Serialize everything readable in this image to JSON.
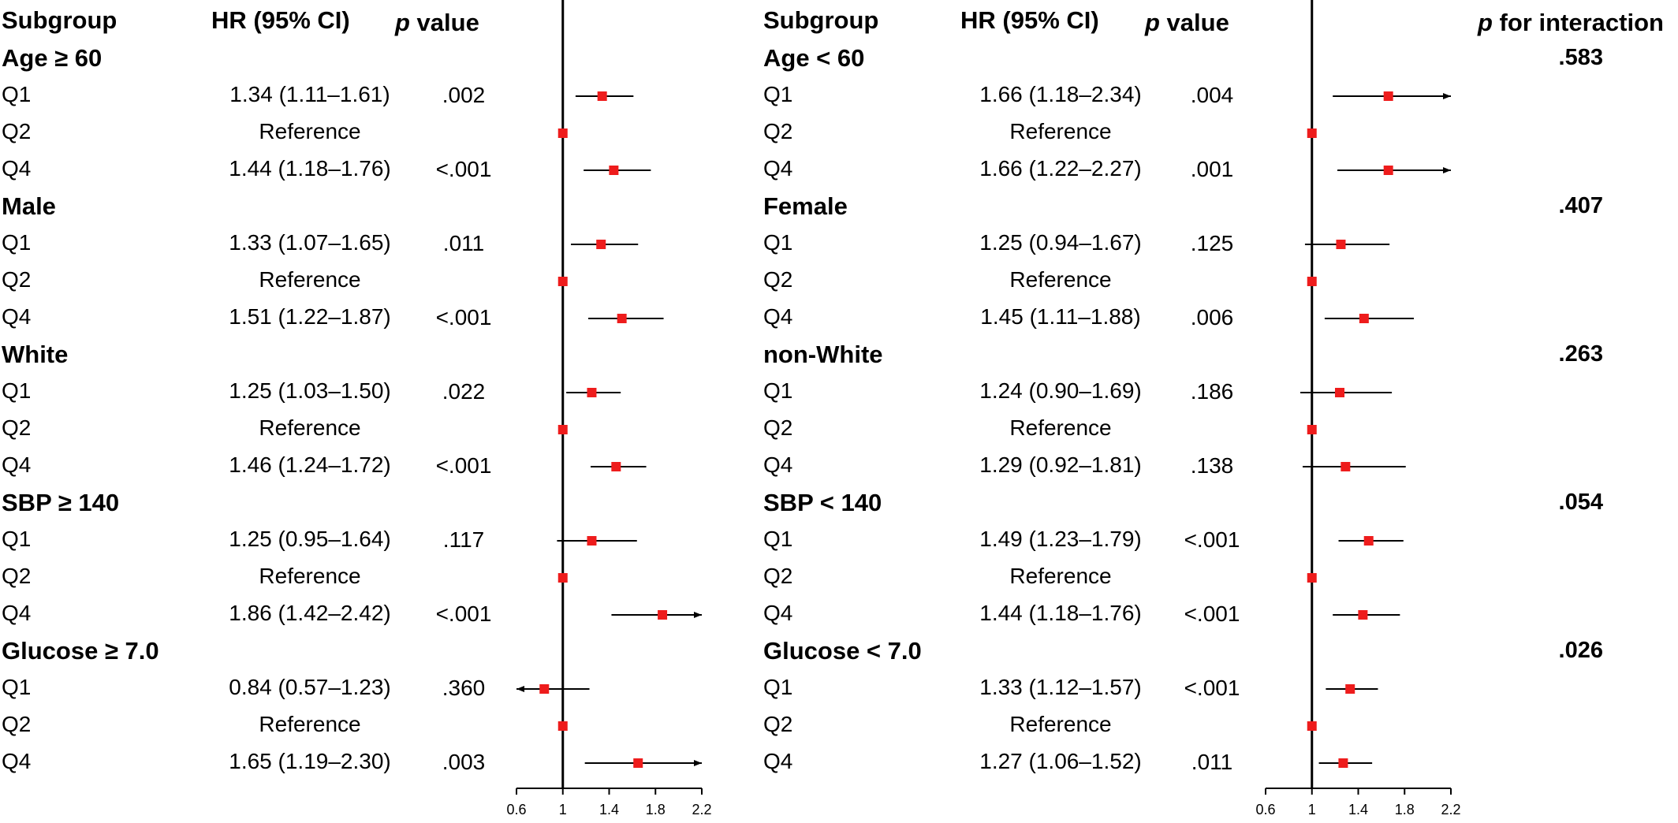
{
  "headers": {
    "subgroup": "Subgroup",
    "hr": "HR (95% CI)",
    "p_italic": "p",
    "p_rest": " value",
    "interaction_italic": "p",
    "interaction_rest": " for interaction"
  },
  "panels": [
    {
      "groups": [
        {
          "label": "Age ≥ 60",
          "rows": [
            {
              "q": "Q1",
              "hr": "1.34 (1.11–1.61)",
              "p": ".002"
            },
            {
              "q": "Q2",
              "hr": "Reference",
              "p": ""
            },
            {
              "q": "Q4",
              "hr": "1.44 (1.18–1.76)",
              "p": "<.001"
            }
          ]
        },
        {
          "label": "Male",
          "rows": [
            {
              "q": "Q1",
              "hr": "1.33 (1.07–1.65)",
              "p": ".011"
            },
            {
              "q": "Q2",
              "hr": "Reference",
              "p": ""
            },
            {
              "q": "Q4",
              "hr": "1.51 (1.22–1.87)",
              "p": "<.001"
            }
          ]
        },
        {
          "label": "White",
          "rows": [
            {
              "q": "Q1",
              "hr": "1.25 (1.03–1.50)",
              "p": ".022"
            },
            {
              "q": "Q2",
              "hr": "Reference",
              "p": ""
            },
            {
              "q": "Q4",
              "hr": "1.46 (1.24–1.72)",
              "p": "<.001"
            }
          ]
        },
        {
          "label": "SBP ≥ 140",
          "rows": [
            {
              "q": "Q1",
              "hr": "1.25 (0.95–1.64)",
              "p": ".117"
            },
            {
              "q": "Q2",
              "hr": "Reference",
              "p": ""
            },
            {
              "q": "Q4",
              "hr": "1.86 (1.42–2.42)",
              "p": "<.001"
            }
          ]
        },
        {
          "label": "Glucose ≥ 7.0",
          "rows": [
            {
              "q": "Q1",
              "hr": "0.84 (0.57–1.23)",
              "p": ".360"
            },
            {
              "q": "Q2",
              "hr": "Reference",
              "p": ""
            },
            {
              "q": "Q4",
              "hr": "1.65 (1.19–2.30)",
              "p": ".003"
            }
          ]
        }
      ]
    },
    {
      "groups": [
        {
          "label": "Age < 60",
          "interaction": ".583",
          "rows": [
            {
              "q": "Q1",
              "hr": "1.66 (1.18–2.34)",
              "p": ".004"
            },
            {
              "q": "Q2",
              "hr": "Reference",
              "p": ""
            },
            {
              "q": "Q4",
              "hr": "1.66 (1.22–2.27)",
              "p": ".001"
            }
          ]
        },
        {
          "label": "Female",
          "interaction": ".407",
          "rows": [
            {
              "q": "Q1",
              "hr": "1.25 (0.94–1.67)",
              "p": ".125"
            },
            {
              "q": "Q2",
              "hr": "Reference",
              "p": ""
            },
            {
              "q": "Q4",
              "hr": "1.45 (1.11–1.88)",
              "p": ".006"
            }
          ]
        },
        {
          "label": "non-White",
          "interaction": ".263",
          "rows": [
            {
              "q": "Q1",
              "hr": "1.24 (0.90–1.69)",
              "p": ".186"
            },
            {
              "q": "Q2",
              "hr": "Reference",
              "p": ""
            },
            {
              "q": "Q4",
              "hr": "1.29 (0.92–1.81)",
              "p": ".138"
            }
          ]
        },
        {
          "label": "SBP < 140",
          "interaction": ".054",
          "rows": [
            {
              "q": "Q1",
              "hr": "1.49 (1.23–1.79)",
              "p": "<.001"
            },
            {
              "q": "Q2",
              "hr": "Reference",
              "p": ""
            },
            {
              "q": "Q4",
              "hr": "1.44 (1.18–1.76)",
              "p": "<.001"
            }
          ]
        },
        {
          "label": "Glucose < 7.0",
          "interaction": ".026",
          "rows": [
            {
              "q": "Q1",
              "hr": "1.33 (1.12–1.57)",
              "p": "<.001"
            },
            {
              "q": "Q2",
              "hr": "Reference",
              "p": ""
            },
            {
              "q": "Q4",
              "hr": "1.27 (1.06–1.52)",
              "p": ".011"
            }
          ]
        }
      ]
    }
  ],
  "chart_data": [
    {
      "type": "forest",
      "xlim": [
        0.6,
        2.2
      ],
      "xticks": [
        "0.6",
        "1",
        "1.4",
        "1.8",
        "2.2"
      ],
      "reference_line": 1,
      "marker_color": "#ee1c1c",
      "points": [
        {
          "hr": 1.34,
          "lo": 1.11,
          "hi": 1.61
        },
        {
          "hr": 1,
          "lo": 1,
          "hi": 1
        },
        {
          "hr": 1.44,
          "lo": 1.18,
          "hi": 1.76
        },
        {
          "hr": 1.33,
          "lo": 1.07,
          "hi": 1.65
        },
        {
          "hr": 1,
          "lo": 1,
          "hi": 1
        },
        {
          "hr": 1.51,
          "lo": 1.22,
          "hi": 1.87
        },
        {
          "hr": 1.25,
          "lo": 1.03,
          "hi": 1.5
        },
        {
          "hr": 1,
          "lo": 1,
          "hi": 1
        },
        {
          "hr": 1.46,
          "lo": 1.24,
          "hi": 1.72
        },
        {
          "hr": 1.25,
          "lo": 0.95,
          "hi": 1.64
        },
        {
          "hr": 1,
          "lo": 1,
          "hi": 1
        },
        {
          "hr": 1.86,
          "lo": 1.42,
          "hi": 2.42
        },
        {
          "hr": 0.84,
          "lo": 0.57,
          "hi": 1.23
        },
        {
          "hr": 1,
          "lo": 1,
          "hi": 1
        },
        {
          "hr": 1.65,
          "lo": 1.19,
          "hi": 2.3
        }
      ]
    },
    {
      "type": "forest",
      "xlim": [
        0.6,
        2.2
      ],
      "xticks": [
        "0.6",
        "1",
        "1.4",
        "1.8",
        "2.2"
      ],
      "reference_line": 1,
      "marker_color": "#ee1c1c",
      "points": [
        {
          "hr": 1.66,
          "lo": 1.18,
          "hi": 2.34
        },
        {
          "hr": 1,
          "lo": 1,
          "hi": 1
        },
        {
          "hr": 1.66,
          "lo": 1.22,
          "hi": 2.27
        },
        {
          "hr": 1.25,
          "lo": 0.94,
          "hi": 1.67
        },
        {
          "hr": 1,
          "lo": 1,
          "hi": 1
        },
        {
          "hr": 1.45,
          "lo": 1.11,
          "hi": 1.88
        },
        {
          "hr": 1.24,
          "lo": 0.9,
          "hi": 1.69
        },
        {
          "hr": 1,
          "lo": 1,
          "hi": 1
        },
        {
          "hr": 1.29,
          "lo": 0.92,
          "hi": 1.81
        },
        {
          "hr": 1.49,
          "lo": 1.23,
          "hi": 1.79
        },
        {
          "hr": 1,
          "lo": 1,
          "hi": 1
        },
        {
          "hr": 1.44,
          "lo": 1.18,
          "hi": 1.76
        },
        {
          "hr": 1.33,
          "lo": 1.12,
          "hi": 1.57
        },
        {
          "hr": 1,
          "lo": 1,
          "hi": 1
        },
        {
          "hr": 1.27,
          "lo": 1.06,
          "hi": 1.52
        }
      ]
    }
  ]
}
